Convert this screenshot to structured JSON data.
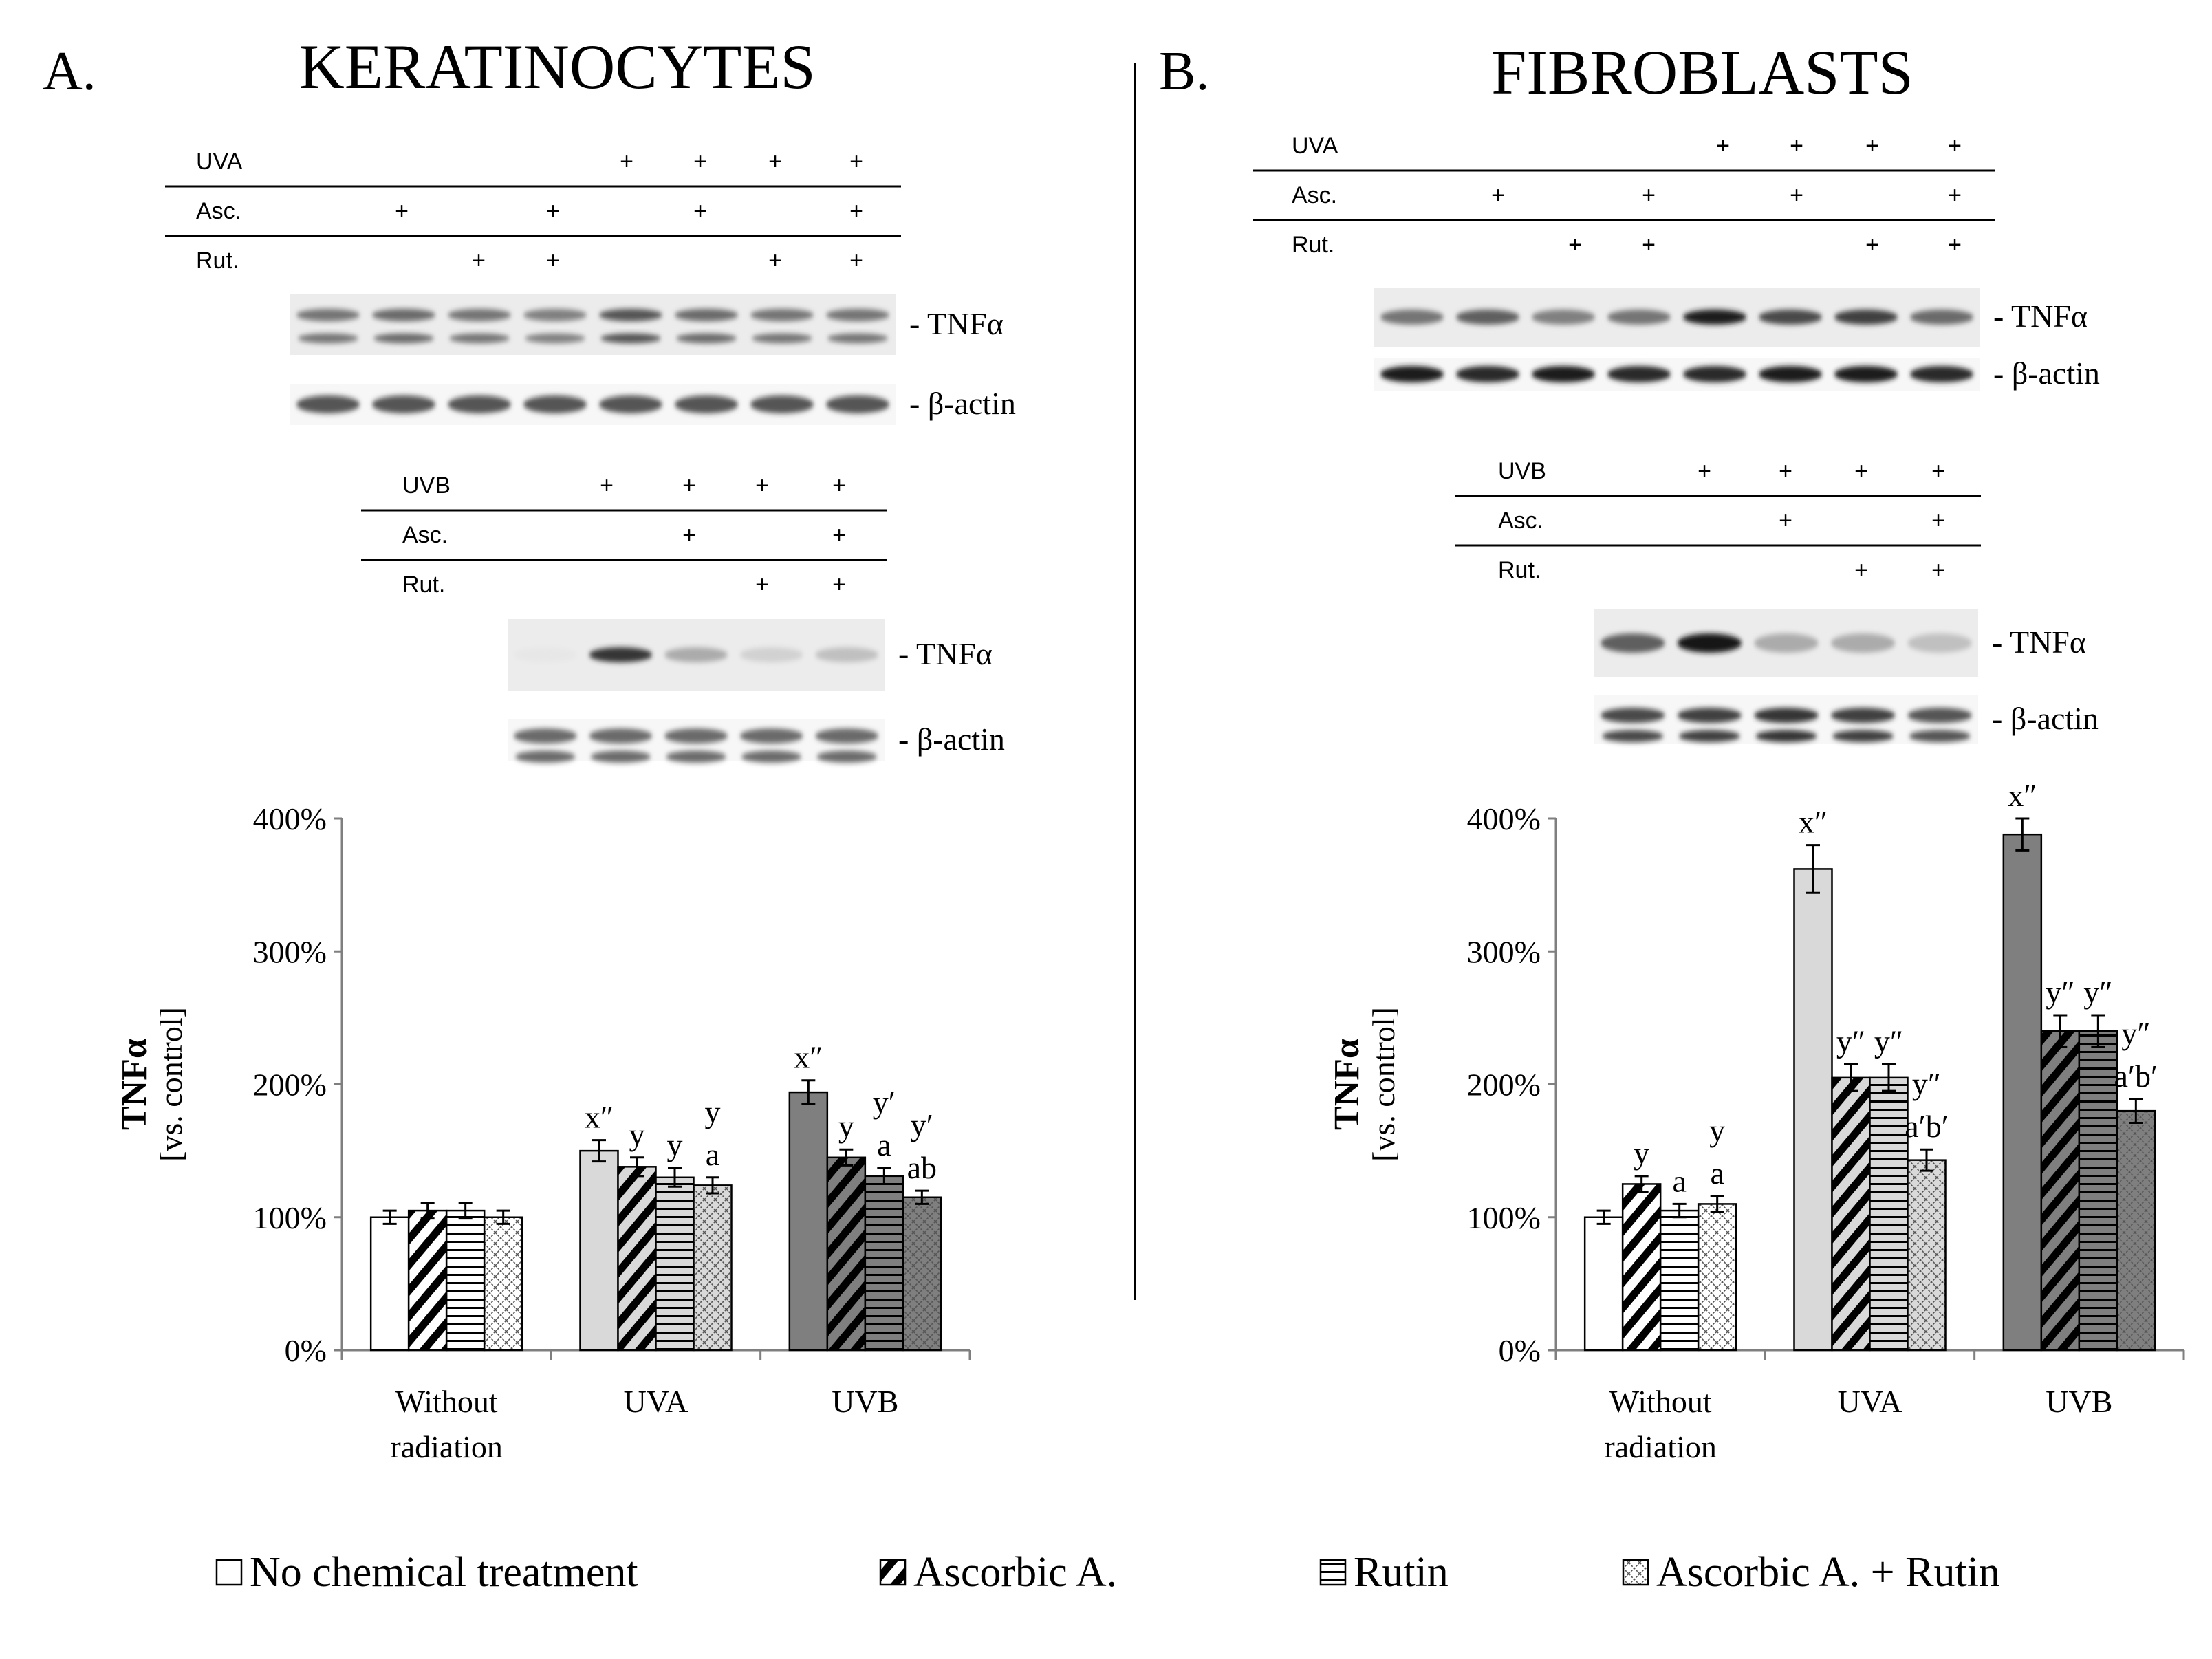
{
  "panels": [
    {
      "letter": "A.",
      "title": "KERATINOCYTES",
      "blot_uva": {
        "rows": [
          {
            "label": "UVA",
            "marks": [
              "",
              "",
              "",
              "",
              "+",
              "+",
              "+",
              "+"
            ]
          },
          {
            "label": "Asc.",
            "marks": [
              "",
              "+",
              "",
              "+",
              "",
              "+",
              "",
              "+"
            ]
          },
          {
            "label": "Rut.",
            "marks": [
              "",
              "",
              "+",
              "+",
              "",
              "",
              "+",
              "+"
            ]
          }
        ],
        "bands": [
          "- TNFα",
          "- β-actin"
        ],
        "tnf_intensity": [
          0.55,
          0.6,
          0.55,
          0.5,
          0.7,
          0.6,
          0.55,
          0.55
        ]
      },
      "blot_uvb": {
        "rows": [
          {
            "label": "UVB",
            "marks": [
              "",
              "+",
              "+",
              "+",
              "+"
            ]
          },
          {
            "label": "Asc.",
            "marks": [
              "",
              "",
              "+",
              "",
              "+"
            ]
          },
          {
            "label": "Rut.",
            "marks": [
              "",
              "",
              "",
              "+",
              "+"
            ]
          }
        ],
        "bands": [
          "- TNFα",
          "- β-actin"
        ],
        "tnf_intensity": [
          0.02,
          0.85,
          0.3,
          0.12,
          0.2
        ]
      }
    },
    {
      "letter": "B.",
      "title": "FIBROBLASTS",
      "blot_uva": {
        "rows": [
          {
            "label": "UVA",
            "marks": [
              "",
              "",
              "",
              "",
              "+",
              "+",
              "+",
              "+"
            ]
          },
          {
            "label": "Asc.",
            "marks": [
              "",
              "+",
              "",
              "+",
              "",
              "+",
              "",
              "+"
            ]
          },
          {
            "label": "Rut.",
            "marks": [
              "",
              "",
              "+",
              "+",
              "",
              "",
              "+",
              "+"
            ]
          }
        ],
        "bands": [
          "- TNFα",
          "- β-actin"
        ],
        "tnf_intensity": [
          0.55,
          0.65,
          0.5,
          0.55,
          0.95,
          0.75,
          0.8,
          0.6
        ]
      },
      "blot_uvb": {
        "rows": [
          {
            "label": "UVB",
            "marks": [
              "",
              "+",
              "+",
              "+",
              "+"
            ]
          },
          {
            "label": "Asc.",
            "marks": [
              "",
              "",
              "+",
              "",
              "+"
            ]
          },
          {
            "label": "Rut.",
            "marks": [
              "",
              "",
              "",
              "+",
              "+"
            ]
          }
        ],
        "bands": [
          "- TNFα",
          "- β-actin"
        ],
        "tnf_intensity": [
          0.65,
          1.0,
          0.3,
          0.3,
          0.2
        ]
      }
    }
  ],
  "chart_data": [
    {
      "type": "bar",
      "panel": "A. KERATINOCYTES",
      "ylabel": "TNFα",
      "ylabel2": "[vs. control]",
      "ylim": [
        0,
        400
      ],
      "yticks": [
        "0%",
        "100%",
        "200%",
        "300%",
        "400%"
      ],
      "categories": [
        "Without radiation",
        "UVA",
        "UVB"
      ],
      "category_lines": [
        [
          "Without",
          "radiation"
        ],
        [
          "UVA"
        ],
        [
          "UVB"
        ]
      ],
      "series": [
        {
          "name": "No chemical treatment",
          "values": [
            100,
            150,
            194
          ],
          "errors": [
            5,
            8,
            9
          ]
        },
        {
          "name": "Ascorbic A.",
          "values": [
            105,
            138,
            145
          ],
          "errors": [
            6,
            7,
            6
          ]
        },
        {
          "name": "Rutin",
          "values": [
            105,
            130,
            131
          ],
          "errors": [
            6,
            7,
            6
          ]
        },
        {
          "name": "Ascorbic A. + Rutin",
          "values": [
            100,
            124,
            115
          ],
          "errors": [
            5,
            6,
            5
          ]
        }
      ],
      "annotations": [
        [
          [],
          [],
          [],
          []
        ],
        [
          [
            "x″"
          ],
          [
            "y"
          ],
          [
            "y"
          ],
          [
            "y",
            "a"
          ]
        ],
        [
          [
            "x″"
          ],
          [
            "y"
          ],
          [
            "y′",
            "a"
          ],
          [
            "y′",
            "ab"
          ]
        ]
      ]
    },
    {
      "type": "bar",
      "panel": "B. FIBROBLASTS",
      "ylabel": "TNFα",
      "ylabel2": "[vs. control]",
      "ylim": [
        0,
        400
      ],
      "yticks": [
        "0%",
        "100%",
        "200%",
        "300%",
        "400%"
      ],
      "categories": [
        "Without radiation",
        "UVA",
        "UVB"
      ],
      "category_lines": [
        [
          "Without",
          "radiation"
        ],
        [
          "UVA"
        ],
        [
          "UVB"
        ]
      ],
      "series": [
        {
          "name": "No chemical treatment",
          "values": [
            100,
            362,
            388
          ],
          "errors": [
            5,
            18,
            12
          ]
        },
        {
          "name": "Ascorbic A.",
          "values": [
            125,
            205,
            240
          ],
          "errors": [
            6,
            10,
            12
          ]
        },
        {
          "name": "Rutin",
          "values": [
            105,
            205,
            240
          ],
          "errors": [
            5,
            10,
            12
          ]
        },
        {
          "name": "Ascorbic A. + Rutin",
          "values": [
            110,
            143,
            180
          ],
          "errors": [
            6,
            8,
            9
          ]
        }
      ],
      "annotations": [
        [
          [],
          [
            "y"
          ],
          [
            "a"
          ],
          [
            "y",
            "a"
          ]
        ],
        [
          [
            "x″"
          ],
          [
            "y″"
          ],
          [
            "y″"
          ],
          [
            "y″",
            "a′b′"
          ]
        ],
        [
          [
            "x″"
          ],
          [
            "y″"
          ],
          [
            "y″"
          ],
          [
            "y″",
            "a′b′"
          ]
        ]
      ]
    }
  ],
  "legend": [
    {
      "label": "No chemical treatment",
      "pattern": "none"
    },
    {
      "label": "Ascorbic A.",
      "pattern": "diag"
    },
    {
      "label": "Rutin",
      "pattern": "horiz"
    },
    {
      "label": "Ascorbic A. + Rutin",
      "pattern": "cross"
    }
  ],
  "colors": {
    "none": "#ffffff",
    "uva": "#d9d9d9",
    "uvb": "#7f7f7f",
    "ink": "#000000"
  }
}
